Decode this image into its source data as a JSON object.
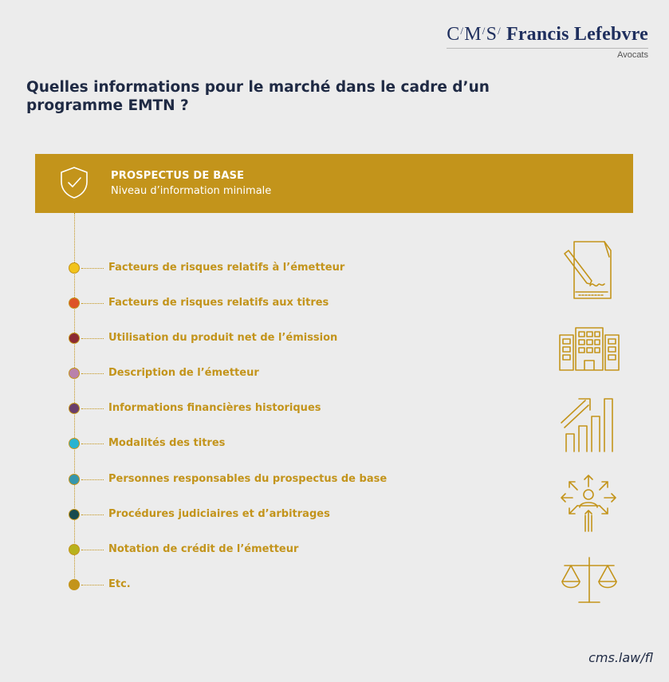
{
  "logo": {
    "c": "C",
    "m": "M",
    "s": "S",
    "slash": "/",
    "name": "Francis Lefebvre",
    "subtitle": "Avocats"
  },
  "title": "Quelles informations pour le marché dans le cadre d’un programme EMTN ?",
  "banner": {
    "title": "PROSPECTUS DE BASE",
    "subtitle": "Niveau d’information minimale",
    "icon": "shield-check-icon",
    "color": "#c3941b"
  },
  "items": [
    {
      "label": "Facteurs de risques relatifs à l’émetteur",
      "color": "#f2c31b"
    },
    {
      "label": "Facteurs de risques relatifs aux titres",
      "color": "#dd5327"
    },
    {
      "label": "Utilisation du produit net de l’émission",
      "color": "#8c2b33"
    },
    {
      "label": "Description de l’émetteur",
      "color": "#b982ab"
    },
    {
      "label": "Informations financières historiques",
      "color": "#6a3e6b"
    },
    {
      "label": "Modalités des titres",
      "color": "#2ab3d1"
    },
    {
      "label": "Personnes responsables du prospectus de base",
      "color": "#3596ad"
    },
    {
      "label": "Procédures judiciaires et d’arbitrages",
      "color": "#184a4e"
    },
    {
      "label": "Notation de crédit de l’émetteur",
      "color": "#b8b21d"
    },
    {
      "label": "Etc.",
      "color": "#c3941b"
    }
  ],
  "icons": [
    "signed-document-icon",
    "buildings-icon",
    "growth-chart-icon",
    "people-network-icon",
    "scales-icon"
  ],
  "footer": "cms.law/fl"
}
